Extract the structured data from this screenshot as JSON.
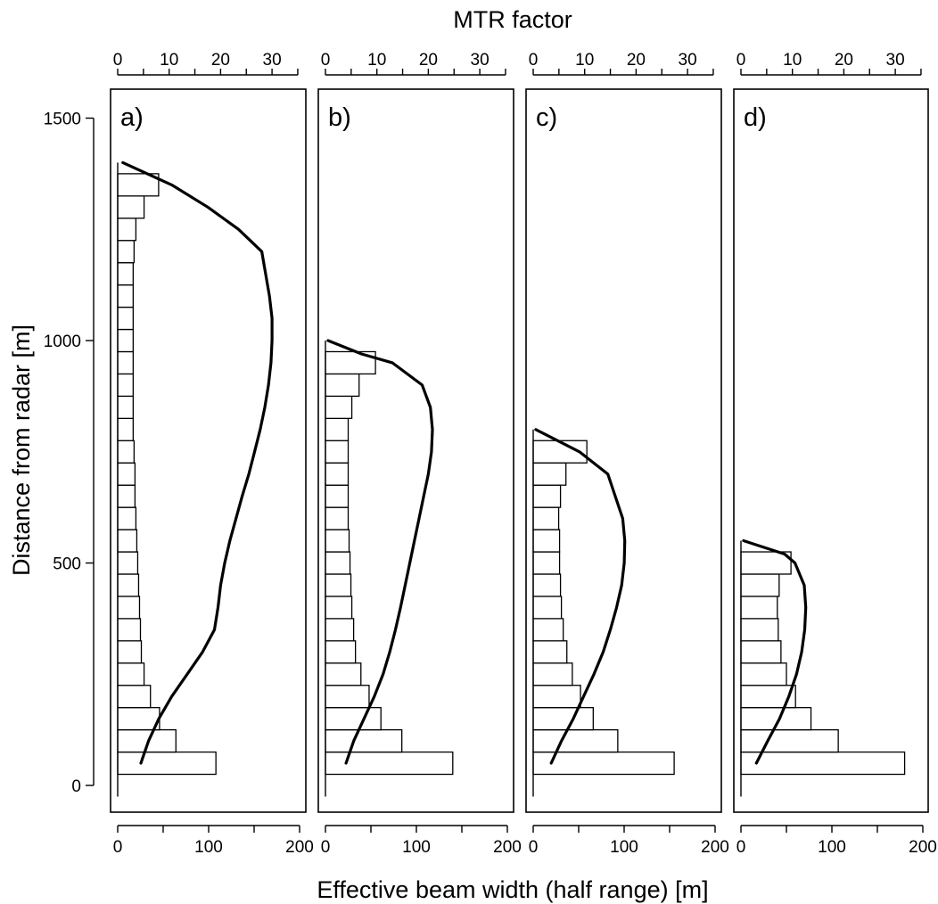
{
  "figure": {
    "top_axis_title": "MTR factor",
    "bottom_axis_title": "Effective beam width (half range) [m]",
    "left_axis_title": "Distance from radar [m]"
  },
  "chart_data": {
    "type": "bar",
    "orientation": "horizontal",
    "grid": false,
    "top_axis": {
      "label": "MTR factor",
      "ticks": [
        0,
        10,
        20,
        30
      ],
      "range": [
        0,
        35
      ]
    },
    "bottom_axis": {
      "label": "Effective beam width (half range) [m]",
      "ticks": [
        0,
        100,
        200
      ],
      "range": [
        0,
        200
      ]
    },
    "left_axis": {
      "label": "Distance from radar [m]",
      "ticks": [
        0,
        500,
        1000,
        1500
      ],
      "range": [
        -50,
        1550
      ]
    },
    "bin_height_m": 50,
    "panels": [
      {
        "label": "a)",
        "bars": {
          "name": "Effective beam width (half range) [m]",
          "distance_centers": [
            50,
            100,
            150,
            200,
            250,
            300,
            350,
            400,
            450,
            500,
            550,
            600,
            650,
            700,
            750,
            800,
            850,
            900,
            950,
            1000,
            1050,
            1100,
            1150,
            1200,
            1250,
            1300,
            1350
          ],
          "values": [
            108,
            64,
            46,
            36,
            29,
            26,
            25,
            24,
            23,
            22,
            21,
            20,
            19,
            19,
            18,
            17,
            17,
            17,
            17,
            17,
            17,
            17,
            17,
            18,
            20,
            29,
            45
          ]
        },
        "curve": {
          "name": "MTR factor",
          "x": [
            4.5,
            6.0,
            8.0,
            10.5,
            13.5,
            16.5,
            18.8,
            19.5,
            20.0,
            20.8,
            21.8,
            23.0,
            24.2,
            25.5,
            26.6,
            27.7,
            28.6,
            29.3,
            29.8,
            30.0,
            30.0,
            29.5,
            28.0,
            23.5,
            17.5,
            10.5,
            1.0
          ],
          "distance": [
            50,
            100,
            150,
            200,
            250,
            300,
            350,
            400,
            450,
            500,
            550,
            600,
            650,
            700,
            750,
            800,
            850,
            900,
            950,
            1000,
            1050,
            1100,
            1200,
            1250,
            1300,
            1350,
            1400
          ]
        }
      },
      {
        "label": "b)",
        "bars": {
          "name": "Effective beam width (half range) [m]",
          "distance_centers": [
            50,
            100,
            150,
            200,
            250,
            300,
            350,
            400,
            450,
            500,
            550,
            600,
            650,
            700,
            750,
            800,
            850,
            900,
            950
          ],
          "values": [
            140,
            84,
            61,
            48,
            39,
            33,
            31,
            29,
            28,
            27,
            26,
            25,
            25,
            25,
            25,
            25,
            29,
            37,
            55
          ]
        },
        "curve": {
          "name": "MTR factor",
          "x": [
            4.0,
            5.5,
            7.5,
            9.5,
            11.2,
            12.5,
            13.6,
            14.6,
            15.5,
            16.4,
            17.3,
            18.2,
            19.1,
            20.0,
            20.6,
            20.8,
            20.4,
            18.8,
            13.0,
            7.0,
            0.5
          ],
          "distance": [
            50,
            100,
            150,
            200,
            250,
            300,
            350,
            400,
            450,
            500,
            550,
            600,
            650,
            700,
            750,
            800,
            850,
            900,
            950,
            970,
            1000
          ]
        }
      },
      {
        "label": "c)",
        "bars": {
          "name": "Effective beam width (half range) [m]",
          "distance_centers": [
            50,
            100,
            150,
            200,
            250,
            300,
            350,
            400,
            450,
            500,
            550,
            600,
            650,
            700,
            750
          ],
          "values": [
            155,
            93,
            66,
            52,
            43,
            37,
            33,
            31,
            30,
            29,
            29,
            28,
            30,
            36,
            59
          ]
        },
        "curve": {
          "name": "MTR factor",
          "x": [
            3.5,
            5.5,
            7.8,
            9.8,
            11.8,
            13.6,
            15.0,
            16.2,
            17.2,
            17.7,
            17.8,
            17.4,
            14.5,
            9.0,
            0.5
          ],
          "distance": [
            50,
            100,
            150,
            200,
            250,
            300,
            350,
            400,
            450,
            500,
            550,
            600,
            700,
            750,
            800
          ]
        }
      },
      {
        "label": "d)",
        "bars": {
          "name": "Effective beam width (half range) [m]",
          "distance_centers": [
            50,
            100,
            150,
            200,
            250,
            300,
            350,
            400,
            450,
            500
          ],
          "values": [
            180,
            107,
            77,
            60,
            50,
            44,
            41,
            40,
            42,
            55
          ]
        },
        "curve": {
          "name": "MTR factor",
          "x": [
            3.0,
            5.2,
            7.5,
            9.3,
            10.8,
            11.8,
            12.4,
            12.6,
            12.3,
            10.5,
            8.5,
            0.5
          ],
          "distance": [
            50,
            100,
            150,
            200,
            250,
            300,
            350,
            400,
            450,
            500,
            520,
            550
          ]
        }
      }
    ]
  }
}
